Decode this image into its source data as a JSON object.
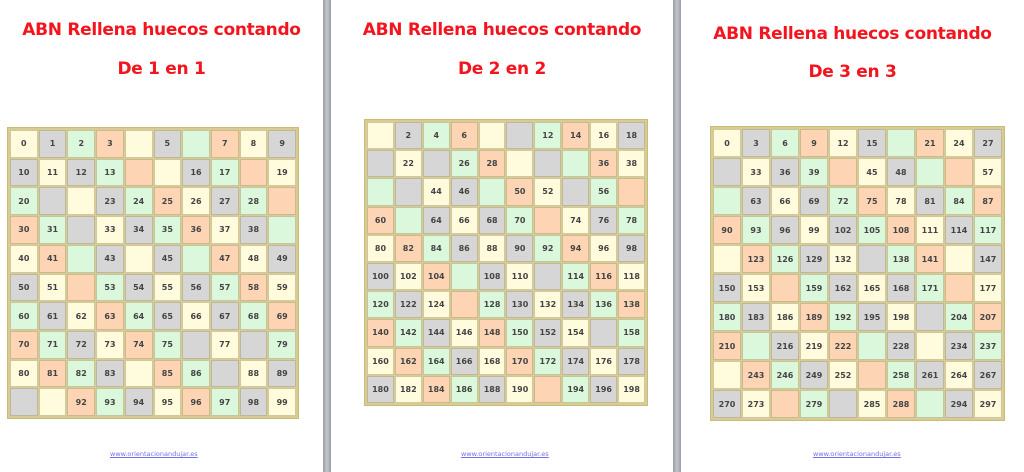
{
  "colors": {
    "Y": "#fffbdc",
    "G": "#d6d6d6",
    "N": "#dbf8dc",
    "O": "#fdd5b5",
    "title": "#f4141e",
    "link": "#7070e8"
  },
  "pages": [
    {
      "title": "ABN Rellena huecos contando",
      "subtitle": "De 1 en 1",
      "footer": "www.orientacionandujar.es",
      "values": [
        [
          "0",
          "1",
          "2",
          "3",
          "",
          "5",
          "",
          "7",
          "8",
          "9"
        ],
        [
          "10",
          "11",
          "12",
          "13",
          "",
          "",
          "16",
          "17",
          "",
          "19"
        ],
        [
          "20",
          "",
          "",
          "23",
          "24",
          "25",
          "26",
          "27",
          "28",
          ""
        ],
        [
          "30",
          "31",
          "",
          "33",
          "34",
          "35",
          "36",
          "37",
          "38",
          ""
        ],
        [
          "40",
          "41",
          "",
          "43",
          "",
          "45",
          "",
          "47",
          "48",
          "49"
        ],
        [
          "50",
          "51",
          "",
          "53",
          "54",
          "55",
          "56",
          "57",
          "58",
          "59"
        ],
        [
          "60",
          "61",
          "62",
          "63",
          "64",
          "65",
          "66",
          "67",
          "68",
          "69"
        ],
        [
          "70",
          "71",
          "72",
          "73",
          "74",
          "75",
          "",
          "77",
          "",
          "79"
        ],
        [
          "80",
          "81",
          "82",
          "83",
          "",
          "85",
          "86",
          "",
          "88",
          "89"
        ],
        [
          "",
          "",
          "92",
          "93",
          "94",
          "95",
          "96",
          "97",
          "98",
          "99"
        ]
      ],
      "cell_colors": [
        "YGNOYGNOYG",
        "GYGNOYGNOY",
        "NGYGNOYGNO",
        "ONGYGNOYGN",
        "YONGYGNOYG",
        "GYONGYGNOY",
        "NGYONGYGNO",
        "ONGYONGYGN",
        "YONGYONGYG",
        "GYONGYONGY"
      ]
    },
    {
      "title": "ABN Rellena huecos contando",
      "subtitle": "De 2 en 2",
      "footer": "www.orientacionandujar.es",
      "values": [
        [
          "",
          "2",
          "4",
          "6",
          "",
          "",
          "12",
          "14",
          "16",
          "18"
        ],
        [
          "",
          "22",
          "",
          "26",
          "28",
          "",
          "",
          "",
          "36",
          "38"
        ],
        [
          "",
          "",
          "44",
          "46",
          "",
          "50",
          "52",
          "",
          "56",
          ""
        ],
        [
          "60",
          "",
          "64",
          "66",
          "68",
          "70",
          "",
          "74",
          "76",
          "78"
        ],
        [
          "80",
          "82",
          "84",
          "86",
          "88",
          "90",
          "92",
          "94",
          "96",
          "98"
        ],
        [
          "100",
          "102",
          "104",
          "",
          "108",
          "110",
          "",
          "114",
          "116",
          "118"
        ],
        [
          "120",
          "122",
          "124",
          "",
          "128",
          "130",
          "132",
          "134",
          "136",
          "138"
        ],
        [
          "140",
          "142",
          "144",
          "146",
          "148",
          "150",
          "152",
          "154",
          "",
          "158"
        ],
        [
          "160",
          "162",
          "164",
          "166",
          "168",
          "170",
          "172",
          "174",
          "176",
          "178"
        ],
        [
          "180",
          "182",
          "184",
          "186",
          "188",
          "190",
          "",
          "194",
          "196",
          "198"
        ]
      ],
      "cell_colors": [
        "YGNOYGNOYG",
        "GYGNOYGNOY",
        "NGYGNOYGNO",
        "ONGYGNOYGN",
        "YONGYGNOYG",
        "GYONGYGNOY",
        "NGYONGYGNO",
        "ONGYONGYGN",
        "YONGYONGYG",
        "GYONGYONGY"
      ]
    },
    {
      "title": "ABN Rellena huecos contando",
      "subtitle": "De 3 en 3",
      "footer": "www.orientacionandujar.es",
      "values": [
        [
          "0",
          "3",
          "6",
          "9",
          "12",
          "15",
          "",
          "21",
          "24",
          "27"
        ],
        [
          "",
          "33",
          "36",
          "39",
          "",
          "45",
          "48",
          "",
          "",
          "57"
        ],
        [
          "",
          "63",
          "66",
          "69",
          "72",
          "75",
          "78",
          "81",
          "84",
          "87"
        ],
        [
          "90",
          "93",
          "96",
          "99",
          "102",
          "105",
          "108",
          "111",
          "114",
          "117"
        ],
        [
          "",
          "123",
          "126",
          "129",
          "132",
          "",
          "138",
          "141",
          "",
          "147"
        ],
        [
          "150",
          "153",
          "",
          "159",
          "162",
          "165",
          "168",
          "171",
          "",
          "177"
        ],
        [
          "180",
          "183",
          "186",
          "189",
          "192",
          "195",
          "198",
          "",
          "204",
          "207"
        ],
        [
          "210",
          "",
          "216",
          "219",
          "222",
          "",
          "228",
          "",
          "234",
          "237"
        ],
        [
          "",
          "243",
          "246",
          "249",
          "252",
          "",
          "258",
          "261",
          "264",
          "267"
        ],
        [
          "270",
          "273",
          "",
          "279",
          "",
          "285",
          "288",
          "",
          "294",
          "297"
        ]
      ],
      "cell_colors": [
        "YGNOYGNOYG",
        "GYGNOYGNOY",
        "NGYGNOYGNO",
        "ONGYGNOYGN",
        "YONGYGNOYG",
        "GYONGYGNOY",
        "NGYONGYGNO",
        "ONGYONGYGN",
        "YONGYONGYG",
        "GYONGYONGY"
      ]
    }
  ]
}
